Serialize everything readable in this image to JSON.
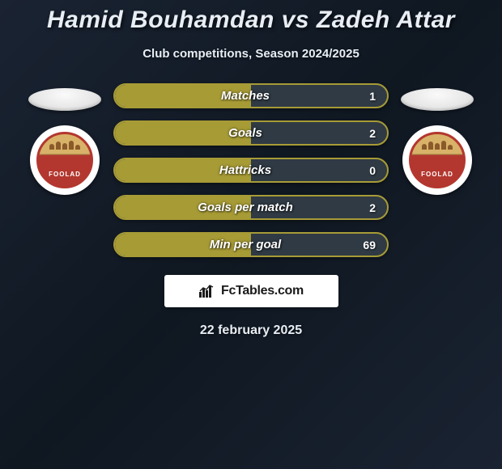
{
  "header": {
    "title": "Hamid Bouhamdan vs Zadeh Attar",
    "subtitle": "Club competitions, Season 2024/2025"
  },
  "crest": {
    "label": "FOOLAD",
    "border_color": "#b3372f",
    "top_color": "#d8b268",
    "bottom_color": "#b3372f"
  },
  "stats": {
    "fill_color": "#a79b36",
    "border_color": "#a79b36",
    "bg_color": "#2f3a44",
    "value_color": "#ffffff",
    "rows": [
      {
        "label": "Matches",
        "value": "1"
      },
      {
        "label": "Goals",
        "value": "2"
      },
      {
        "label": "Hattricks",
        "value": "0"
      },
      {
        "label": "Goals per match",
        "value": "2"
      },
      {
        "label": "Min per goal",
        "value": "69"
      }
    ]
  },
  "brand": {
    "text": "FcTables.com",
    "icon_name": "bar-chart-icon"
  },
  "footer": {
    "date": "22 february 2025"
  },
  "colors": {
    "background_start": "#1a2332",
    "background_end": "#0f1721",
    "text": "#e8eef4"
  }
}
